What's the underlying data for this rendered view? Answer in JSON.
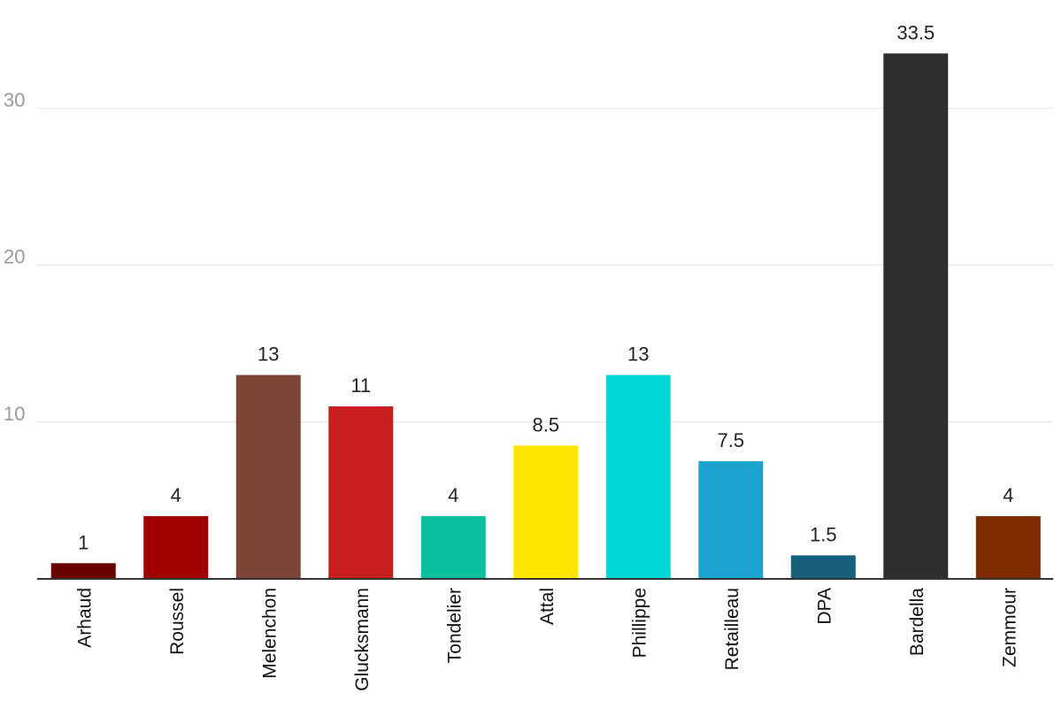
{
  "chart_data": {
    "type": "bar",
    "title": "",
    "xlabel": "",
    "ylabel": "",
    "categories": [
      "Arhaud",
      "Roussel",
      "Melenchon",
      "Glucksmann",
      "Tondelier",
      "Attal",
      "Phillippe",
      "Retailleau",
      "DPA",
      "Bardella",
      "Zemmour"
    ],
    "values": [
      1,
      4,
      13,
      11,
      4,
      8.5,
      13,
      7.5,
      1.5,
      33.5,
      4
    ],
    "value_labels": [
      "1",
      "4",
      "13",
      "11",
      "4",
      "8.5",
      "13",
      "7.5",
      "1.5",
      "33.5",
      "4"
    ],
    "colors": [
      "#6b0000",
      "#a00000",
      "#7d4536",
      "#c81e1e",
      "#0abfa0",
      "#ffe600",
      "#00d7d7",
      "#1aa3cf",
      "#165f7d",
      "#2e2e2e",
      "#7f2a00"
    ],
    "yticks": [
      "10",
      "20",
      "30"
    ],
    "ylim": [
      0,
      35
    ],
    "grid": true,
    "legend": "none"
  }
}
